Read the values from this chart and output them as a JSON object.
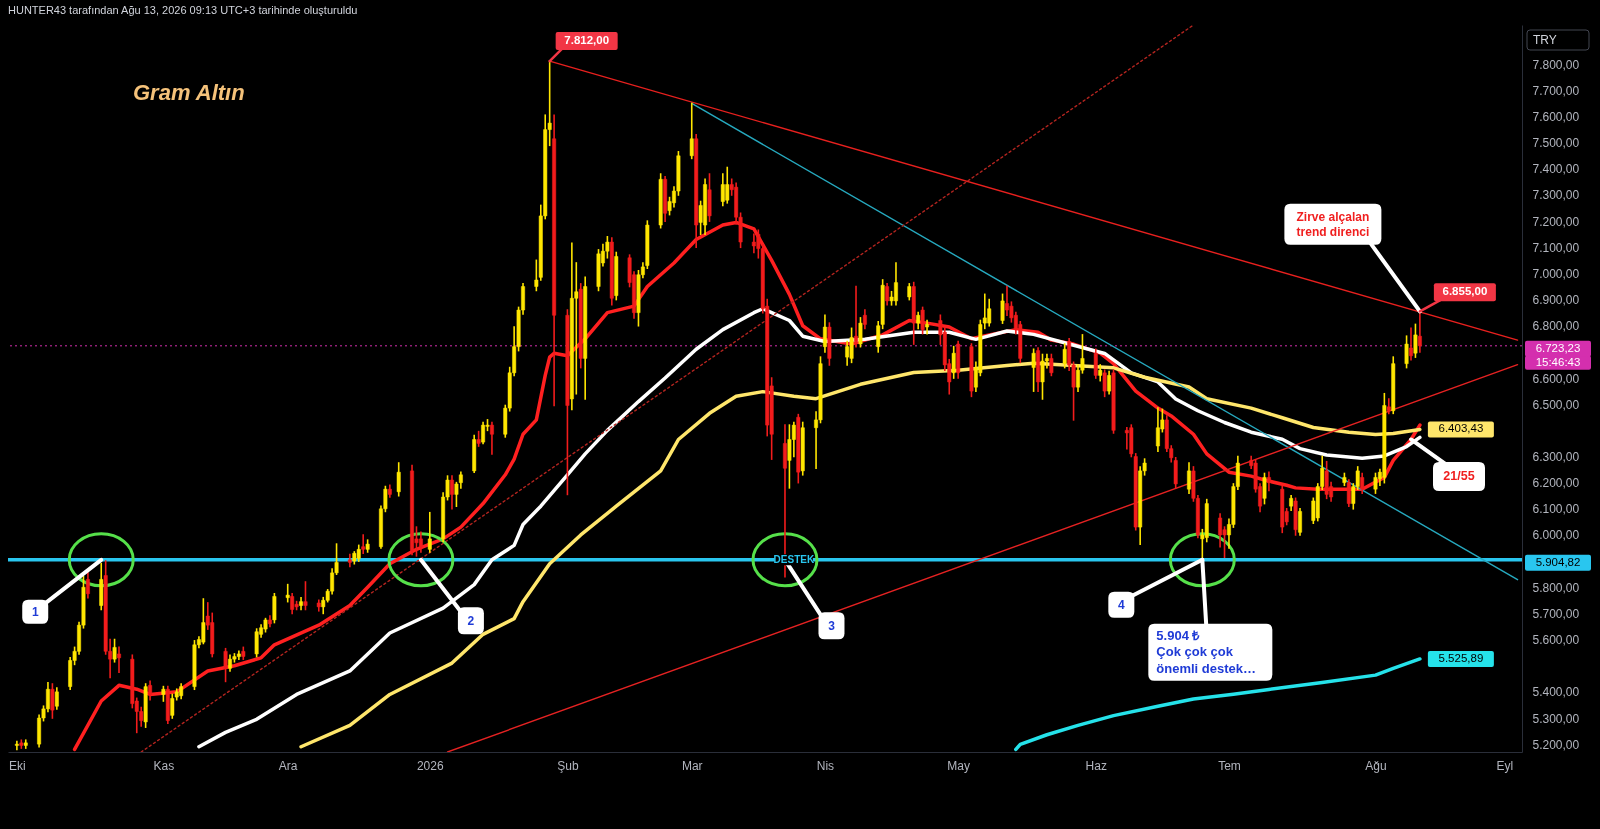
{
  "chart_data": {
    "type": "candlestick",
    "title": "Gram Altın",
    "xlim": [
      "2025-09-29",
      "2026-09-05"
    ],
    "xticks": [
      {
        "value": "2025-10-01",
        "label": "Eki"
      },
      {
        "value": "2025-11-03",
        "label": "Kas"
      },
      {
        "value": "2025-12-01",
        "label": "Ara"
      },
      {
        "value": "2026-01-02",
        "label": "2026"
      },
      {
        "value": "2026-02-02",
        "label": "Şub"
      },
      {
        "value": "2026-03-02",
        "label": "Mar"
      },
      {
        "value": "2026-04-01",
        "label": "Nis"
      },
      {
        "value": "2026-05-01",
        "label": "May"
      },
      {
        "value": "2026-06-01",
        "label": "Haz"
      },
      {
        "value": "2026-07-01",
        "label": "Tem"
      },
      {
        "value": "2026-08-03",
        "label": "Ağu"
      },
      {
        "value": "2026-09-01",
        "label": "Eyl"
      }
    ],
    "ylim": [
      5170,
      7950
    ],
    "yticks": [
      {
        "value": 5200,
        "label": "5.200,00"
      },
      {
        "value": 5300,
        "label": "5.300,00"
      },
      {
        "value": 5400,
        "label": "5.400,00"
      },
      {
        "value": 5600,
        "label": "5.600,00"
      },
      {
        "value": 5700,
        "label": "5.700,00"
      },
      {
        "value": 5800,
        "label": "5.800,00"
      },
      {
        "value": 6000,
        "label": "6.000,00"
      },
      {
        "value": 6100,
        "label": "6.100,00"
      },
      {
        "value": 6200,
        "label": "6.200,00"
      },
      {
        "value": 6300,
        "label": "6.300,00"
      },
      {
        "value": 6500,
        "label": "6.500,00"
      },
      {
        "value": 6600,
        "label": "6.600,00"
      },
      {
        "value": 6800,
        "label": "6.800,00"
      },
      {
        "value": 6900,
        "label": "6.900,00"
      },
      {
        "value": 7000,
        "label": "7.000,00"
      },
      {
        "value": 7100,
        "label": "7.100,00"
      },
      {
        "value": 7200,
        "label": "7.200,00"
      },
      {
        "value": 7300,
        "label": "7.300,00"
      },
      {
        "value": 7400,
        "label": "7.400,00"
      },
      {
        "value": 7500,
        "label": "7.500,00"
      },
      {
        "value": 7600,
        "label": "7.600,00"
      },
      {
        "value": 7700,
        "label": "7.700,00"
      },
      {
        "value": 7800,
        "label": "7.800,00"
      }
    ],
    "series": [
      {
        "color": "#ffe600",
        "x": [
          "2025-10-01",
          "2025-10-03",
          "2025-10-06",
          "2025-10-07",
          "2025-10-08",
          "2025-10-10",
          "2025-10-13",
          "2025-10-14",
          "2025-10-15",
          "2025-10-16",
          "2025-10-20",
          "2025-10-23",
          "2025-10-30",
          "2025-11-03",
          "2025-11-05",
          "2025-11-06",
          "2025-11-07",
          "2025-11-10",
          "2025-11-11",
          "2025-11-12",
          "2025-11-18",
          "2025-11-19",
          "2025-11-20",
          "2025-11-24",
          "2025-11-25",
          "2025-11-26",
          "2025-11-28",
          "2025-12-01",
          "2025-12-04",
          "2025-12-09",
          "2025-12-10",
          "2025-12-11",
          "2025-12-12",
          "2025-12-16",
          "2025-12-17",
          "2025-12-19",
          "2025-12-22",
          "2025-12-23",
          "2025-12-26",
          "2026-01-02",
          "2026-01-05",
          "2026-01-06",
          "2026-01-08",
          "2026-01-09",
          "2026-01-12",
          "2026-01-14",
          "2026-01-15",
          "2026-01-19",
          "2026-01-20",
          "2026-01-21",
          "2026-01-22",
          "2026-01-23",
          "2026-01-26",
          "2026-01-27",
          "2026-01-28",
          "2026-01-29",
          "2026-02-03",
          "2026-02-04",
          "2026-02-06",
          "2026-02-09",
          "2026-02-10",
          "2026-02-11",
          "2026-02-13",
          "2026-02-18",
          "2026-02-19",
          "2026-02-20",
          "2026-02-23",
          "2026-02-25",
          "2026-02-26",
          "2026-02-27",
          "2026-03-02",
          "2026-03-04",
          "2026-03-05",
          "2026-03-09",
          "2026-03-10",
          "2026-03-24",
          "2026-03-25",
          "2026-03-27",
          "2026-03-30",
          "2026-03-31",
          "2026-04-01",
          "2026-04-06",
          "2026-04-07",
          "2026-04-09",
          "2026-04-13",
          "2026-04-14",
          "2026-04-16",
          "2026-04-17",
          "2026-04-20",
          "2026-04-22",
          "2026-04-24",
          "2026-04-30",
          "2026-05-05",
          "2026-05-06",
          "2026-05-07",
          "2026-05-08",
          "2026-05-11",
          "2026-05-18",
          "2026-05-20",
          "2026-05-21",
          "2026-05-25",
          "2026-05-28",
          "2026-05-29",
          "2026-06-02",
          "2026-06-04",
          "2026-06-11",
          "2026-06-12",
          "2026-06-15",
          "2026-06-16",
          "2026-06-22",
          "2026-06-25",
          "2026-06-26",
          "2026-07-01",
          "2026-07-02",
          "2026-07-03",
          "2026-07-09",
          "2026-07-15",
          "2026-07-17",
          "2026-07-20",
          "2026-07-21",
          "2026-07-22",
          "2026-07-27",
          "2026-07-29",
          "2026-07-30",
          "2026-08-03",
          "2026-08-04",
          "2026-08-05",
          "2026-08-07",
          "2026-08-10",
          "2026-08-12"
        ],
        "ohlc": [
          [
            5195,
            5210,
            5180,
            5200
          ],
          [
            5195,
            5215,
            5185,
            5205
          ],
          [
            5200,
            5310,
            5190,
            5300
          ],
          [
            5300,
            5345,
            5290,
            5335
          ],
          [
            5335,
            5435,
            5325,
            5410
          ],
          [
            5345,
            5415,
            5335,
            5400
          ],
          [
            5420,
            5530,
            5410,
            5520
          ],
          [
            5520,
            5570,
            5505,
            5555
          ],
          [
            5555,
            5665,
            5545,
            5655
          ],
          [
            5655,
            5840,
            5645,
            5800
          ],
          [
            5730,
            5890,
            5715,
            5830
          ],
          [
            5525,
            5600,
            5515,
            5570
          ],
          [
            5285,
            5430,
            5265,
            5420
          ],
          [
            5390,
            5420,
            5365,
            5410
          ],
          [
            5310,
            5390,
            5300,
            5375
          ],
          [
            5380,
            5410,
            5370,
            5400
          ],
          [
            5385,
            5430,
            5375,
            5420
          ],
          [
            5420,
            5595,
            5410,
            5580
          ],
          [
            5580,
            5610,
            5570,
            5600
          ],
          [
            5590,
            5755,
            5585,
            5665
          ],
          [
            5490,
            5540,
            5480,
            5525
          ],
          [
            5525,
            5545,
            5515,
            5535
          ],
          [
            5535,
            5555,
            5525,
            5545
          ],
          [
            5545,
            5640,
            5535,
            5630
          ],
          [
            5620,
            5655,
            5610,
            5645
          ],
          [
            5640,
            5680,
            5630,
            5675
          ],
          [
            5675,
            5775,
            5665,
            5765
          ],
          [
            5760,
            5810,
            5745,
            5770
          ],
          [
            5730,
            5760,
            5715,
            5745
          ],
          [
            5725,
            5760,
            5700,
            5750
          ],
          [
            5750,
            5790,
            5745,
            5785
          ],
          [
            5785,
            5870,
            5775,
            5855
          ],
          [
            5855,
            5965,
            5850,
            5895
          ],
          [
            5900,
            5935,
            5890,
            5930
          ],
          [
            5910,
            5960,
            5900,
            5945
          ],
          [
            5945,
            5980,
            5935,
            5965
          ],
          [
            5955,
            6110,
            5950,
            6100
          ],
          [
            6100,
            6185,
            6090,
            6175
          ],
          [
            6165,
            6275,
            6150,
            6240
          ],
          [
            5945,
            6085,
            5935,
            5985
          ],
          [
            5985,
            6160,
            5975,
            6145
          ],
          [
            6145,
            6225,
            6135,
            6210
          ],
          [
            6155,
            6200,
            6110,
            6195
          ],
          [
            6200,
            6240,
            6180,
            6230
          ],
          [
            6245,
            6380,
            6240,
            6365
          ],
          [
            6355,
            6430,
            6350,
            6420
          ],
          [
            6415,
            6440,
            6400,
            6420
          ],
          [
            6385,
            6495,
            6375,
            6485
          ],
          [
            6485,
            6640,
            6475,
            6620
          ],
          [
            6620,
            6795,
            6610,
            6720
          ],
          [
            6720,
            6870,
            6705,
            6860
          ],
          [
            6860,
            6960,
            6845,
            6950
          ],
          [
            6950,
            7050,
            6935,
            6975
          ],
          [
            6985,
            7260,
            6975,
            7220
          ],
          [
            7220,
            7605,
            7210,
            7550
          ],
          [
            7550,
            7812,
            7490,
            7575
          ],
          [
            6520,
            7115,
            6480,
            6905
          ],
          [
            6905,
            7040,
            6540,
            6930
          ],
          [
            6675,
            6985,
            6520,
            6950
          ],
          [
            6950,
            7090,
            6935,
            7075
          ],
          [
            7040,
            7110,
            7030,
            7085
          ],
          [
            7085,
            7140,
            7060,
            7120
          ],
          [
            6915,
            7080,
            6900,
            7065
          ],
          [
            6850,
            7010,
            6800,
            6995
          ],
          [
            6995,
            7040,
            6985,
            7025
          ],
          [
            7030,
            7200,
            7020,
            7185
          ],
          [
            7185,
            7380,
            7175,
            7360
          ],
          [
            7240,
            7290,
            7225,
            7275
          ],
          [
            7270,
            7330,
            7255,
            7315
          ],
          [
            7315,
            7465,
            7300,
            7450
          ],
          [
            7450,
            7650,
            7440,
            7515
          ],
          [
            7195,
            7275,
            7150,
            7260
          ],
          [
            7185,
            7360,
            7150,
            7340
          ],
          [
            7275,
            7380,
            7260,
            7340
          ],
          [
            7280,
            7405,
            7270,
            7340
          ],
          [
            6285,
            6420,
            6180,
            6365
          ],
          [
            6365,
            6430,
            6300,
            6420
          ],
          [
            6245,
            6430,
            6230,
            6410
          ],
          [
            6410,
            6470,
            6255,
            6440
          ],
          [
            6440,
            6680,
            6430,
            6655
          ],
          [
            6720,
            6840,
            6700,
            6795
          ],
          [
            6680,
            6740,
            6650,
            6720
          ],
          [
            6675,
            6790,
            6660,
            6755
          ],
          [
            6730,
            6830,
            6720,
            6810
          ],
          [
            6720,
            6815,
            6700,
            6800
          ],
          [
            6805,
            6975,
            6790,
            6955
          ],
          [
            6895,
            6930,
            6880,
            6910
          ],
          [
            6895,
            7040,
            6880,
            6965
          ],
          [
            6910,
            6960,
            6900,
            6950
          ],
          [
            6810,
            6850,
            6790,
            6840
          ],
          [
            6795,
            6820,
            6770,
            6805
          ],
          [
            6620,
            6720,
            6600,
            6695
          ],
          [
            6565,
            6660,
            6550,
            6640
          ],
          [
            6620,
            6820,
            6610,
            6805
          ],
          [
            6810,
            6920,
            6790,
            6830
          ],
          [
            6810,
            6900,
            6800,
            6865
          ],
          [
            6820,
            6920,
            6810,
            6895
          ],
          [
            6640,
            6710,
            6550,
            6695
          ],
          [
            6585,
            6690,
            6520,
            6665
          ],
          [
            6665,
            6690,
            6640,
            6675
          ],
          [
            6655,
            6730,
            6640,
            6710
          ],
          [
            6565,
            6650,
            6550,
            6630
          ],
          [
            6630,
            6765,
            6620,
            6675
          ],
          [
            6610,
            6650,
            6590,
            6630
          ],
          [
            6550,
            6625,
            6540,
            6610
          ],
          [
            6030,
            6260,
            5965,
            6245
          ],
          [
            6245,
            6290,
            6230,
            6275
          ],
          [
            6340,
            6485,
            6320,
            6410
          ],
          [
            6405,
            6480,
            6395,
            6440
          ],
          [
            6175,
            6275,
            6160,
            6245
          ],
          [
            5985,
            6020,
            5905,
            6000
          ],
          [
            5990,
            6135,
            5975,
            6120
          ],
          [
            6000,
            6060,
            5950,
            6040
          ],
          [
            6040,
            6195,
            6030,
            6185
          ],
          [
            6185,
            6300,
            6175,
            6275
          ],
          [
            6140,
            6235,
            6120,
            6220
          ],
          [
            6110,
            6150,
            6095,
            6140
          ],
          [
            6010,
            6100,
            6000,
            6090
          ],
          [
            6055,
            6140,
            6045,
            6130
          ],
          [
            6065,
            6195,
            6055,
            6185
          ],
          [
            6185,
            6300,
            6175,
            6255
          ],
          [
            6200,
            6235,
            6190,
            6220
          ],
          [
            6120,
            6195,
            6100,
            6185
          ],
          [
            6185,
            6260,
            6175,
            6245
          ],
          [
            6175,
            6235,
            6160,
            6220
          ],
          [
            6215,
            6250,
            6190,
            6240
          ],
          [
            6220,
            6540,
            6200,
            6495
          ],
          [
            6475,
            6680,
            6465,
            6655
          ],
          [
            6655,
            6760,
            6640,
            6730
          ],
          [
            6695,
            6805,
            6680,
            6765
          ]
        ]
      },
      {
        "color": "#f21c1c",
        "x": [
          "2025-10-02",
          "2025-10-09",
          "2025-10-17",
          "2025-10-21",
          "2025-10-22",
          "2025-10-24",
          "2025-10-27",
          "2025-10-28",
          "2025-10-29",
          "2025-10-31",
          "2025-11-04",
          "2025-11-13",
          "2025-11-14",
          "2025-11-17",
          "2025-11-21",
          "2025-11-27",
          "2025-12-02",
          "2025-12-03",
          "2025-12-05",
          "2025-12-08",
          "2025-12-15",
          "2025-12-18",
          "2025-12-24",
          "2025-12-29",
          "2025-12-30",
          "2025-12-31",
          "2026-01-07",
          "2026-01-13",
          "2026-01-16",
          "2026-01-30",
          "2026-02-02",
          "2026-02-05",
          "2026-02-12",
          "2026-02-16",
          "2026-02-17",
          "2026-02-24",
          "2026-03-03",
          "2026-03-06",
          "2026-03-11",
          "2026-03-12",
          "2026-03-13",
          "2026-03-16",
          "2026-03-17",
          "2026-03-18",
          "2026-03-19",
          "2026-03-20",
          "2026-03-23",
          "2026-03-26",
          "2026-04-02",
          "2026-04-08",
          "2026-04-10",
          "2026-04-15",
          "2026-04-21",
          "2026-04-23",
          "2026-04-27",
          "2026-04-28",
          "2026-04-29",
          "2026-05-01",
          "2026-05-04",
          "2026-05-12",
          "2026-05-13",
          "2026-05-14",
          "2026-05-15",
          "2026-05-19",
          "2026-05-22",
          "2026-05-26",
          "2026-05-27",
          "2026-06-01",
          "2026-06-03",
          "2026-06-05",
          "2026-06-08",
          "2026-06-09",
          "2026-06-10",
          "2026-06-17",
          "2026-06-18",
          "2026-06-19",
          "2026-06-23",
          "2026-06-24",
          "2026-06-29",
          "2026-06-30",
          "2026-07-06",
          "2026-07-07",
          "2026-07-08",
          "2026-07-10",
          "2026-07-13",
          "2026-07-14",
          "2026-07-16",
          "2026-07-23",
          "2026-07-24",
          "2026-07-28",
          "2026-07-31",
          "2026-08-06",
          "2026-08-11",
          "2026-08-13"
        ],
        "ohlc": [
          [
            5205,
            5215,
            5185,
            5195
          ],
          [
            5410,
            5430,
            5300,
            5330
          ],
          [
            5830,
            5860,
            5760,
            5775
          ],
          [
            5845,
            5900,
            5545,
            5555
          ],
          [
            5555,
            5600,
            5455,
            5525
          ],
          [
            5545,
            5570,
            5475,
            5530
          ],
          [
            5525,
            5540,
            5340,
            5355
          ],
          [
            5365,
            5375,
            5245,
            5325
          ],
          [
            5325,
            5340,
            5270,
            5290
          ],
          [
            5425,
            5440,
            5370,
            5390
          ],
          [
            5410,
            5420,
            5280,
            5290
          ],
          [
            5690,
            5740,
            5640,
            5655
          ],
          [
            5665,
            5700,
            5535,
            5545
          ],
          [
            5555,
            5565,
            5440,
            5490
          ],
          [
            5555,
            5570,
            5525,
            5535
          ],
          [
            5675,
            5690,
            5650,
            5660
          ],
          [
            5765,
            5775,
            5700,
            5715
          ],
          [
            5735,
            5745,
            5715,
            5725
          ],
          [
            5745,
            5820,
            5715,
            5730
          ],
          [
            5740,
            5750,
            5710,
            5725
          ],
          [
            5905,
            5925,
            5880,
            5895
          ],
          [
            5955,
            6000,
            5930,
            5945
          ],
          [
            6175,
            6190,
            6145,
            6155
          ],
          [
            6245,
            6265,
            5925,
            5940
          ],
          [
            5985,
            6030,
            5920,
            5970
          ],
          [
            5985,
            6010,
            5935,
            5955
          ],
          [
            6210,
            6225,
            6100,
            6155
          ],
          [
            6365,
            6395,
            6340,
            6350
          ],
          [
            6420,
            6430,
            6310,
            6385
          ],
          [
            7515,
            7605,
            6495,
            6840
          ],
          [
            6840,
            6860,
            6155,
            6495
          ],
          [
            6940,
            6960,
            6640,
            6675
          ],
          [
            7120,
            7135,
            6880,
            6905
          ],
          [
            7060,
            7070,
            6950,
            6965
          ],
          [
            6995,
            7005,
            6830,
            6850
          ],
          [
            7360,
            7370,
            7200,
            7230
          ],
          [
            7515,
            7530,
            7100,
            7185
          ],
          [
            7320,
            7380,
            7200,
            7220
          ],
          [
            7340,
            7360,
            7300,
            7320
          ],
          [
            7330,
            7345,
            7190,
            7215
          ],
          [
            7215,
            7230,
            7100,
            7120
          ],
          [
            7120,
            7150,
            7080,
            7105
          ],
          [
            7150,
            7165,
            7060,
            7095
          ],
          [
            7095,
            7110,
            6850,
            6865
          ],
          [
            6875,
            6900,
            6380,
            6420
          ],
          [
            6570,
            6600,
            6290,
            6385
          ],
          [
            6350,
            6420,
            5840,
            6255
          ],
          [
            6450,
            6460,
            6200,
            6240
          ],
          [
            6795,
            6810,
            6650,
            6675
          ],
          [
            6760,
            6950,
            6720,
            6740
          ],
          [
            6840,
            6860,
            6790,
            6805
          ],
          [
            6950,
            6960,
            6880,
            6895
          ],
          [
            6950,
            6965,
            6730,
            6810
          ],
          [
            6860,
            6870,
            6770,
            6785
          ],
          [
            6820,
            6840,
            6730,
            6765
          ],
          [
            6775,
            6790,
            6630,
            6650
          ],
          [
            6655,
            6670,
            6540,
            6585
          ],
          [
            6730,
            6740,
            6600,
            6620
          ],
          [
            6720,
            6730,
            6530,
            6550
          ],
          [
            6885,
            6950,
            6840,
            6860
          ],
          [
            6875,
            6890,
            6815,
            6830
          ],
          [
            6840,
            6850,
            6770,
            6785
          ],
          [
            6805,
            6815,
            6660,
            6675
          ],
          [
            6705,
            6715,
            6550,
            6585
          ],
          [
            6675,
            6690,
            6610,
            6620
          ],
          [
            6740,
            6750,
            6630,
            6650
          ],
          [
            6650,
            6660,
            6440,
            6565
          ],
          [
            6695,
            6710,
            6600,
            6610
          ],
          [
            6620,
            6630,
            6530,
            6550
          ],
          [
            6620,
            6630,
            6390,
            6400
          ],
          [
            6400,
            6410,
            6330,
            6390
          ],
          [
            6410,
            6420,
            6300,
            6310
          ],
          [
            6300,
            6310,
            6020,
            6030
          ],
          [
            6440,
            6455,
            6320,
            6330
          ],
          [
            6330,
            6340,
            6280,
            6295
          ],
          [
            6285,
            6295,
            6180,
            6195
          ],
          [
            6245,
            6260,
            6130,
            6140
          ],
          [
            6140,
            6150,
            5990,
            6000
          ],
          [
            6065,
            6080,
            5955,
            6000
          ],
          [
            6020,
            6030,
            5915,
            6000
          ],
          [
            6285,
            6300,
            6255,
            6265
          ],
          [
            6275,
            6285,
            6165,
            6175
          ],
          [
            6185,
            6195,
            6090,
            6110
          ],
          [
            6220,
            6240,
            6170,
            6200
          ],
          [
            6175,
            6185,
            6010,
            6030
          ],
          [
            6090,
            6100,
            6040,
            6050
          ],
          [
            6130,
            6140,
            6000,
            6020
          ],
          [
            6245,
            6280,
            6140,
            6155
          ],
          [
            6185,
            6200,
            6130,
            6145
          ],
          [
            6200,
            6210,
            6110,
            6120
          ],
          [
            6220,
            6235,
            6160,
            6175
          ],
          [
            6490,
            6520,
            6465,
            6475
          ],
          [
            6715,
            6790,
            6670,
            6685
          ],
          [
            6760,
            6855,
            6700,
            6723.23
          ]
        ]
      },
      {
        "type": "line",
        "color": "#ff2020",
        "x": [
          "2025-10-14",
          "2025-10-20",
          "2025-10-24",
          "2025-10-28",
          "2025-10-31",
          "2025-11-06",
          "2025-11-13",
          "2025-11-19",
          "2025-11-25",
          "2025-11-28",
          "2025-12-08",
          "2025-12-15",
          "2025-12-19",
          "2025-12-24",
          "2025-12-30",
          "2026-01-05",
          "2026-01-09",
          "2026-01-14",
          "2026-01-19",
          "2026-01-21",
          "2026-01-23",
          "2026-01-26",
          "2026-01-28",
          "2026-01-29",
          "2026-01-30",
          "2026-02-02",
          "2026-02-06",
          "2026-02-11",
          "2026-02-17",
          "2026-02-20",
          "2026-02-26",
          "2026-03-03",
          "2026-03-09",
          "2026-03-12",
          "2026-03-16",
          "2026-03-18",
          "2026-03-20",
          "2026-03-24",
          "2026-03-27",
          "2026-03-31",
          "2026-04-07",
          "2026-04-14",
          "2026-04-20",
          "2026-04-24",
          "2026-04-29",
          "2026-05-04",
          "2026-05-08",
          "2026-05-14",
          "2026-05-19",
          "2026-05-22",
          "2026-05-27",
          "2026-06-02",
          "2026-06-05",
          "2026-06-10",
          "2026-06-15",
          "2026-06-18",
          "2026-06-23",
          "2026-06-26",
          "2026-07-01",
          "2026-07-06",
          "2026-07-09",
          "2026-07-14",
          "2026-07-16",
          "2026-07-21",
          "2026-07-27",
          "2026-07-31",
          "2026-08-05",
          "2026-08-07",
          "2026-08-11",
          "2026-08-13"
        ],
        "values": [
          5180,
          5365,
          5425,
          5410,
          5390,
          5400,
          5480,
          5500,
          5530,
          5580,
          5655,
          5730,
          5800,
          5890,
          5945,
          5985,
          6030,
          6120,
          6230,
          6290,
          6385,
          6440,
          6610,
          6680,
          6695,
          6685,
          6750,
          6850,
          6875,
          6950,
          7040,
          7130,
          7185,
          7195,
          7170,
          7110,
          7050,
          6920,
          6800,
          6750,
          6730,
          6765,
          6820,
          6810,
          6795,
          6750,
          6765,
          6785,
          6775,
          6745,
          6730,
          6695,
          6655,
          6550,
          6485,
          6455,
          6385,
          6310,
          6240,
          6225,
          6210,
          6190,
          6180,
          6175,
          6175,
          6175,
          6220,
          6285,
          6365,
          6420
        ]
      },
      {
        "type": "line",
        "color": "#ffffff",
        "x": [
          "2025-11-11",
          "2025-11-17",
          "2025-11-24",
          "2025-12-03",
          "2025-12-15",
          "2025-12-24",
          "2026-01-05",
          "2026-01-12",
          "2026-01-16",
          "2026-01-21",
          "2026-01-23",
          "2026-01-27",
          "2026-02-02",
          "2026-02-06",
          "2026-02-11",
          "2026-02-18",
          "2026-02-24",
          "2026-03-03",
          "2026-03-09",
          "2026-03-16",
          "2026-03-18",
          "2026-03-20",
          "2026-03-24",
          "2026-03-27",
          "2026-04-01",
          "2026-04-10",
          "2026-04-21",
          "2026-04-29",
          "2026-05-05",
          "2026-05-12",
          "2026-05-18",
          "2026-05-26",
          "2026-06-03",
          "2026-06-09",
          "2026-06-15",
          "2026-06-19",
          "2026-06-24",
          "2026-06-30",
          "2026-07-06",
          "2026-07-13",
          "2026-07-17",
          "2026-07-23",
          "2026-07-31",
          "2026-08-05",
          "2026-08-10",
          "2026-08-13"
        ],
        "values": [
          5190,
          5245,
          5295,
          5390,
          5480,
          5625,
          5720,
          5810,
          5905,
          5960,
          6040,
          6110,
          6230,
          6310,
          6400,
          6510,
          6600,
          6710,
          6785,
          6850,
          6865,
          6850,
          6820,
          6760,
          6740,
          6748,
          6775,
          6775,
          6748,
          6780,
          6767,
          6730,
          6694,
          6620,
          6585,
          6520,
          6475,
          6430,
          6393,
          6366,
          6330,
          6306,
          6293,
          6302,
          6338,
          6373
        ]
      },
      {
        "type": "line",
        "color": "#ffe66b",
        "x": [
          "2025-12-04",
          "2025-12-15",
          "2025-12-24",
          "2026-01-07",
          "2026-01-14",
          "2026-01-21",
          "2026-01-23",
          "2026-01-29",
          "2026-02-05",
          "2026-02-13",
          "2026-02-23",
          "2026-02-27",
          "2026-03-06",
          "2026-03-12",
          "2026-03-18",
          "2026-03-25",
          "2026-03-30",
          "2026-04-09",
          "2026-04-21",
          "2026-05-01",
          "2026-05-12",
          "2026-05-18",
          "2026-05-27",
          "2026-06-05",
          "2026-06-12",
          "2026-06-22",
          "2026-06-26",
          "2026-07-06",
          "2026-07-13",
          "2026-07-20",
          "2026-07-28",
          "2026-08-03",
          "2026-08-07",
          "2026-08-13"
        ],
        "values": [
          5190,
          5272,
          5390,
          5510,
          5620,
          5680,
          5745,
          5890,
          6000,
          6110,
          6245,
          6365,
          6465,
          6530,
          6548,
          6530,
          6521,
          6576,
          6621,
          6630,
          6648,
          6657,
          6648,
          6639,
          6603,
          6566,
          6521,
          6485,
          6448,
          6411,
          6393,
          6384,
          6388,
          6403.43
        ],
        "value_labels": [
          null,
          null,
          null,
          null,
          null,
          null,
          null,
          null,
          null,
          null,
          null,
          null,
          null,
          null,
          null,
          null,
          null,
          null,
          null,
          null,
          null,
          null,
          null,
          null,
          null,
          null,
          null,
          null,
          null,
          null,
          null,
          null,
          null,
          "6.403,43"
        ]
      },
      {
        "type": "line",
        "color": "#25e2ea",
        "x": [
          "2026-05-14",
          "2026-05-15",
          "2026-05-21",
          "2026-05-28",
          "2026-06-05",
          "2026-06-15",
          "2026-06-23",
          "2026-07-02",
          "2026-07-10",
          "2026-07-22",
          "2026-08-03",
          "2026-08-07",
          "2026-08-13"
        ],
        "values": [
          5180,
          5199,
          5236,
          5272,
          5309,
          5345,
          5373,
          5391,
          5409,
          5436,
          5464,
          5490,
          5525.89
        ],
        "value_labels": [
          null,
          null,
          null,
          null,
          null,
          null,
          null,
          null,
          null,
          null,
          null,
          null,
          "5.525,89"
        ]
      },
      {
        "type": "line",
        "color": "#e8201e",
        "x": [
          "2026-01-29",
          "2026-09-04"
        ],
        "values": [
          7812,
          6745
        ]
      },
      {
        "type": "line",
        "color": "#26a9bf",
        "x": [
          "2026-03-02",
          "2026-09-04"
        ],
        "values": [
          7650,
          5829
        ]
      },
      {
        "type": "line",
        "color": "#e52222",
        "x": [
          "2026-01-06",
          "2026-09-04"
        ],
        "values": [
          5170,
          6651
        ]
      },
      {
        "type": "line",
        "color": "#b3241f",
        "line_style": "dotted",
        "x": [
          "2025-10-29",
          "2026-06-23"
        ],
        "values": [
          5170,
          7950
        ]
      }
    ],
    "ref_lines": [
      {
        "axis": "y",
        "value": 5904.82,
        "label": "5.904,82",
        "color": "#29c6ef"
      },
      {
        "axis": "y",
        "value": 6723.23,
        "label": "6.723,23",
        "color": "#d42fae",
        "line_style": "dotted"
      }
    ],
    "annotations": [
      "HUNTER43 tarafından Ağu 13, 2026 09:13 UTC+3 tarihinde oluşturuldu",
      {
        "text": "7.812,00",
        "x": "2026-01-29",
        "y": 7812
      },
      {
        "text": "Zirve alçalan\ntrend direnci",
        "x": "2026-08-13",
        "y": 6855
      },
      {
        "text": "6.855,00",
        "x": "2026-08-13",
        "y": 6855
      },
      {
        "text": "21/55",
        "x": "2026-08-11",
        "y": 6365
      },
      {
        "text": "1",
        "x": "2025-10-20",
        "y": 5904.82
      },
      {
        "text": "2",
        "x": "2025-12-31",
        "y": 5904.82
      },
      {
        "text": "3",
        "x": "2026-03-23",
        "y": 5904.82
      },
      {
        "text": "4",
        "x": "2026-06-25",
        "y": 5904.82
      },
      {
        "text": "5.904 ₺\nÇok çok çok\nönemli destek…",
        "x": "2026-06-25",
        "y": 5904.82
      },
      {
        "text": "DESTEK",
        "x": "2026-03-25",
        "y": 5904.82
      },
      {
        "text": "15:46:43",
        "x": "2026-09-05",
        "y": 6723.23
      },
      "TRY"
    ]
  }
}
